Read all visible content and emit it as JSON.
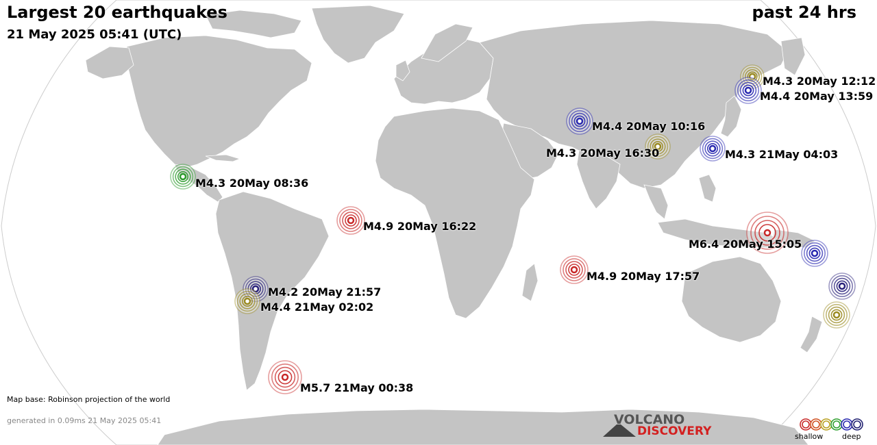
{
  "header": {
    "title": "Largest 20 earthquakes",
    "subtitle": "21 May 2025 05:41 (UTC)",
    "period": "past 24 hrs"
  },
  "footer": {
    "map_base": "Map base: Robinson projection of the world",
    "generated": "generated in 0.09ms 21 May 2025 05:41"
  },
  "logo": {
    "line1": "VOLCANO",
    "line2": "DISCOVERY"
  },
  "legend": {
    "shallow": "shallow",
    "deep": "deep",
    "depth_colors": [
      "#c82828",
      "#d05020",
      "#b8a020",
      "#30a030",
      "#2828b0",
      "#202070"
    ]
  },
  "colors": {
    "ocean": "#ffffff",
    "land": "#c4c4c4",
    "border": "#ffffff",
    "red": "#c82828",
    "olive": "#9a8a20",
    "green": "#2a9a2a",
    "blue": "#2828b0",
    "navy": "#28207a"
  },
  "earthquakes": [
    {
      "label": "M4.3 20May 12:12",
      "mag": 4.3,
      "color": "olive"
    },
    {
      "label": "M4.4 20May 13:59",
      "mag": 4.4,
      "color": "blue"
    },
    {
      "label": "M4.4 20May 10:16",
      "mag": 4.4,
      "color": "blue"
    },
    {
      "label": "M4.3 20May 16:30",
      "mag": 4.3,
      "color": "olive"
    },
    {
      "label": "M4.3 21May 04:03",
      "mag": 4.3,
      "color": "blue"
    },
    {
      "label": "M4.3 20May 08:36",
      "mag": 4.3,
      "color": "green"
    },
    {
      "label": "M4.9 20May 16:22",
      "mag": 4.9,
      "color": "red"
    },
    {
      "label": "M6.4 20May 15:05",
      "mag": 6.4,
      "color": "red"
    },
    {
      "label": "M4.9 20May 17:57",
      "mag": 4.9,
      "color": "red"
    },
    {
      "label": "M4.2 20May 21:57",
      "mag": 4.2,
      "color": "navy"
    },
    {
      "label": "M4.4 21May 02:02",
      "mag": 4.4,
      "color": "olive"
    },
    {
      "label": "M5.7 21May 00:38",
      "mag": 5.7,
      "color": "red"
    },
    {
      "label": "",
      "mag": null,
      "color": "blue"
    },
    {
      "label": "",
      "mag": null,
      "color": "navy"
    },
    {
      "label": "",
      "mag": null,
      "color": "olive"
    }
  ]
}
